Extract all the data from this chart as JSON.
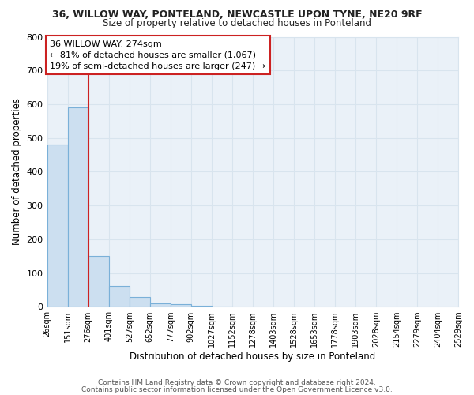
{
  "title1": "36, WILLOW WAY, PONTELAND, NEWCASTLE UPON TYNE, NE20 9RF",
  "title2": "Size of property relative to detached houses in Ponteland",
  "xlabel": "Distribution of detached houses by size in Ponteland",
  "ylabel": "Number of detached properties",
  "footer1": "Contains HM Land Registry data © Crown copyright and database right 2024.",
  "footer2": "Contains public sector information licensed under the Open Government Licence v3.0.",
  "annotation_line1": "36 WILLOW WAY: 274sqm",
  "annotation_line2": "← 81% of detached houses are smaller (1,067)",
  "annotation_line3": "19% of semi-detached houses are larger (247) →",
  "bar_color": "#ccdff0",
  "bar_edge_color": "#7ab0d8",
  "vline_color": "#cc2222",
  "annotation_box_facecolor": "#ffffff",
  "annotation_box_edgecolor": "#cc2222",
  "grid_color": "#d8e4ee",
  "plot_bg_color": "#eaf1f8",
  "fig_bg_color": "#ffffff",
  "bins": [
    26,
    151,
    276,
    401,
    527,
    652,
    777,
    902,
    1027,
    1152,
    1278,
    1403,
    1528,
    1653,
    1778,
    1903,
    2028,
    2154,
    2279,
    2404,
    2529
  ],
  "heights": [
    480,
    590,
    150,
    62,
    30,
    10,
    7,
    3,
    1,
    0,
    0,
    0,
    0,
    0,
    0,
    0,
    0,
    0,
    0,
    0
  ],
  "vline_x": 276,
  "ylim": [
    0,
    800
  ],
  "yticks": [
    0,
    100,
    200,
    300,
    400,
    500,
    600,
    700,
    800
  ]
}
